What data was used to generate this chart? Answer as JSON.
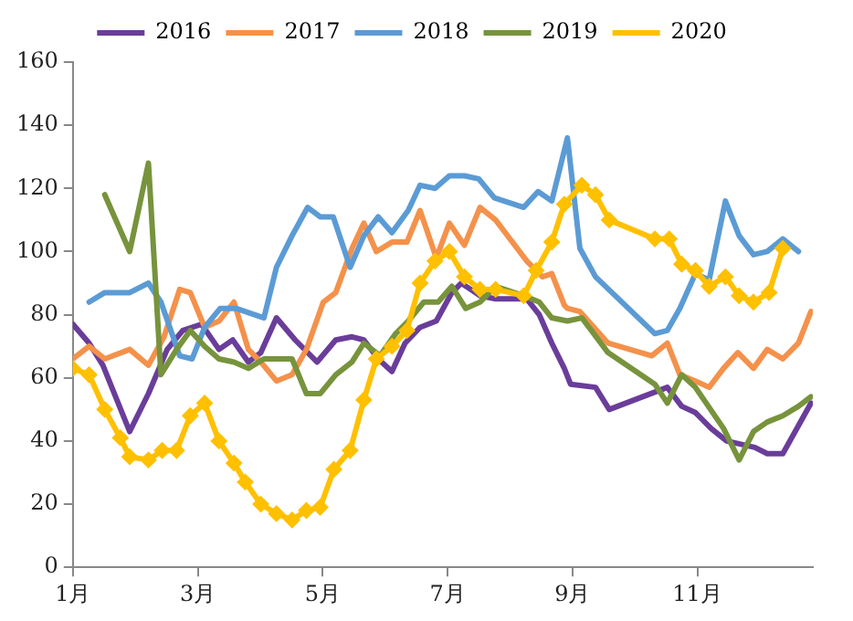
{
  "chart_data": {
    "type": "line",
    "xlim": [
      1,
      12.85
    ],
    "xticks": [
      {
        "value": 1,
        "label": "1月"
      },
      {
        "value": 3,
        "label": "3月"
      },
      {
        "value": 5,
        "label": "5月"
      },
      {
        "value": 7,
        "label": "7月"
      },
      {
        "value": 9,
        "label": "9月"
      },
      {
        "value": 11,
        "label": "11月"
      }
    ],
    "ylim": [
      0,
      160
    ],
    "yticks": [
      0,
      20,
      40,
      60,
      80,
      100,
      120,
      140,
      160
    ],
    "grid": false,
    "legend": "top",
    "line_style": "solid",
    "series": [
      {
        "name": "2016",
        "color": "#6a3d9a",
        "marker": "none",
        "x": [
          1.0,
          1.26,
          1.48,
          1.91,
          2.21,
          2.51,
          2.76,
          3.06,
          3.34,
          3.56,
          3.81,
          4.01,
          4.26,
          4.56,
          4.91,
          5.21,
          5.47,
          5.66,
          5.89,
          6.11,
          6.32,
          6.56,
          6.82,
          7.07,
          7.22,
          7.52,
          7.77,
          8.27,
          8.47,
          8.67,
          8.87,
          8.97,
          9.37,
          9.59,
          10.52,
          10.75,
          10.97,
          11.22,
          11.47,
          11.92,
          12.12,
          12.37,
          12.82
        ],
        "values": [
          77,
          71,
          64,
          43,
          55,
          69,
          75,
          77,
          69,
          72,
          65,
          68,
          79,
          72,
          65,
          72,
          73,
          72,
          66,
          62,
          71,
          76,
          78,
          87,
          90,
          86,
          85,
          85,
          80,
          71,
          63,
          58,
          57,
          50,
          57,
          51,
          49,
          44,
          40,
          38,
          36,
          36,
          52
        ]
      },
      {
        "name": "2017",
        "color": "#f4914b",
        "marker": "none",
        "x": [
          1.0,
          1.26,
          1.51,
          1.91,
          2.21,
          2.46,
          2.71,
          2.88,
          3.11,
          3.34,
          3.58,
          3.81,
          4.01,
          4.26,
          4.51,
          4.74,
          5.01,
          5.21,
          5.47,
          5.66,
          5.86,
          6.11,
          6.35,
          6.56,
          6.82,
          7.03,
          7.27,
          7.52,
          7.77,
          8.27,
          8.52,
          8.67,
          8.87,
          8.92,
          9.12,
          9.57,
          10.27,
          10.52,
          10.72,
          10.97,
          11.19,
          11.42,
          11.65,
          11.9,
          12.12,
          12.37,
          12.62,
          12.82
        ],
        "values": [
          66,
          70,
          66,
          69,
          64,
          73,
          88,
          87,
          76,
          78,
          84,
          69,
          65,
          59,
          61,
          69,
          84,
          87,
          101,
          109,
          100,
          103,
          103,
          113,
          98,
          109,
          102,
          114,
          110,
          97,
          92,
          93,
          83,
          82,
          81,
          71,
          67,
          71,
          61,
          59,
          57,
          63,
          68,
          63,
          69,
          66,
          71,
          81
        ]
      },
      {
        "name": "2018",
        "color": "#5b9bd5",
        "marker": "none",
        "x": [
          1.26,
          1.51,
          1.91,
          2.21,
          2.41,
          2.71,
          2.91,
          3.11,
          3.36,
          3.61,
          4.06,
          4.26,
          4.51,
          4.76,
          4.96,
          5.17,
          5.44,
          5.66,
          5.89,
          6.11,
          6.37,
          6.56,
          6.8,
          7.03,
          7.27,
          7.5,
          7.75,
          8.22,
          8.45,
          8.67,
          8.92,
          9.12,
          9.37,
          10.32,
          10.52,
          10.72,
          10.97,
          11.19,
          11.45,
          11.67,
          11.9,
          12.12,
          12.37,
          12.62
        ],
        "values": [
          84,
          87,
          87,
          90,
          84,
          67,
          66,
          76,
          82,
          82,
          79,
          95,
          105,
          114,
          111,
          111,
          95,
          105,
          111,
          106,
          113,
          121,
          120,
          124,
          124,
          123,
          117,
          114,
          119,
          116,
          136,
          101,
          92,
          74,
          75,
          82,
          93,
          91,
          116,
          105,
          99,
          100,
          104,
          100
        ]
      },
      {
        "name": "2019",
        "color": "#77933c",
        "marker": "none",
        "x": [
          1.51,
          1.91,
          2.21,
          2.41,
          2.66,
          2.88,
          3.11,
          3.34,
          3.58,
          3.81,
          4.06,
          4.51,
          4.74,
          4.96,
          5.21,
          5.47,
          5.66,
          5.92,
          6.17,
          6.37,
          6.62,
          6.85,
          7.07,
          7.29,
          7.52,
          7.77,
          8.22,
          8.47,
          8.67,
          8.92,
          9.15,
          9.57,
          10.32,
          10.52,
          10.75,
          10.97,
          11.42,
          11.67,
          11.9,
          12.12,
          12.37,
          12.62,
          12.82
        ],
        "values": [
          118,
          100,
          128,
          61,
          69,
          75,
          70,
          66,
          65,
          63,
          66,
          66,
          55,
          55,
          61,
          65,
          71,
          67,
          74,
          78,
          84,
          84,
          89,
          82,
          84,
          89,
          86,
          84,
          79,
          78,
          79,
          68,
          58,
          52,
          61,
          57,
          44,
          34,
          43,
          46,
          48,
          51,
          54
        ]
      },
      {
        "name": "2020",
        "color": "#ffc000",
        "marker": "diamond",
        "x": [
          1.0,
          1.26,
          1.51,
          1.76,
          1.91,
          2.21,
          2.43,
          2.66,
          2.88,
          3.11,
          3.34,
          3.58,
          3.76,
          4.01,
          4.26,
          4.51,
          4.74,
          4.96,
          5.18,
          5.44,
          5.66,
          5.86,
          6.11,
          6.35,
          6.56,
          6.8,
          7.03,
          7.27,
          7.52,
          7.77,
          8.22,
          8.42,
          8.67,
          8.87,
          9.15,
          9.37,
          9.59,
          10.32,
          10.55,
          10.75,
          10.97,
          11.19,
          11.45,
          11.67,
          11.9,
          12.15,
          12.37
        ],
        "values": [
          63,
          61,
          50,
          41,
          35,
          34,
          37,
          37,
          48,
          52,
          40,
          33,
          27,
          20,
          17,
          15,
          18,
          19,
          31,
          37,
          53,
          66,
          70,
          75,
          90,
          97,
          100,
          92,
          88,
          88,
          86,
          94,
          103,
          115,
          121,
          118,
          110,
          104,
          104,
          96,
          94,
          89,
          92,
          86,
          84,
          87,
          101
        ]
      }
    ]
  }
}
